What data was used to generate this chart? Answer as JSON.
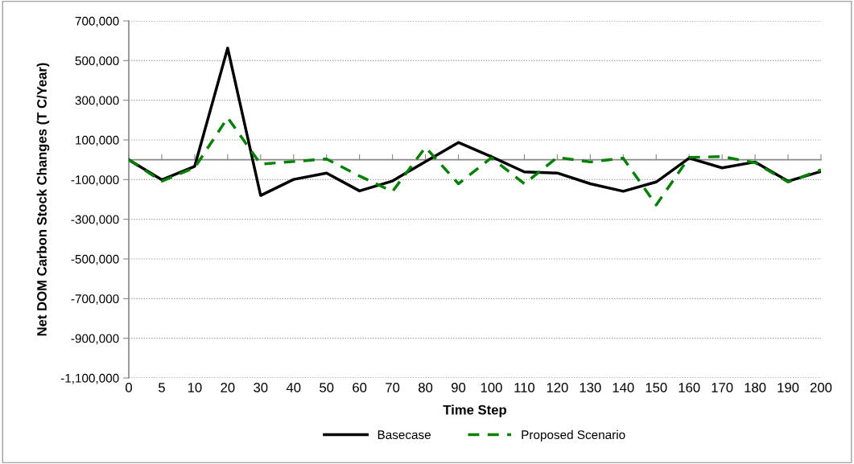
{
  "chart_data": {
    "type": "line",
    "xlabel": "Time Step",
    "ylabel": "Net DOM Carbon Stock Changes (T C/Year)",
    "categories": [
      "0",
      "5",
      "10",
      "20",
      "30",
      "40",
      "50",
      "60",
      "70",
      "80",
      "90",
      "100",
      "110",
      "120",
      "130",
      "140",
      "150",
      "160",
      "170",
      "180",
      "190",
      "200"
    ],
    "series": [
      {
        "name": "Basecase",
        "color": "#000000",
        "line_style": "solid",
        "values": [
          0,
          -101000,
          -33000,
          563000,
          -180000,
          -99000,
          -67000,
          -157000,
          -107000,
          -9000,
          87000,
          15000,
          -61000,
          -67000,
          -121000,
          -159000,
          -112000,
          8000,
          -41000,
          -11000,
          -108000,
          -59000
        ]
      },
      {
        "name": "Proposed Scenario",
        "color": "#008000",
        "line_style": "dashed",
        "values": [
          0,
          -108000,
          -40000,
          212000,
          -22000,
          -9000,
          4000,
          -82000,
          -160000,
          63000,
          -121000,
          10000,
          -121000,
          12000,
          -11000,
          8000,
          -228000,
          12000,
          16000,
          -15000,
          -112000,
          -51000
        ]
      }
    ],
    "ylim": [
      -1100000,
      700000
    ],
    "yticks": [
      {
        "value": -1100000,
        "label": "-1,100,000"
      },
      {
        "value": -900000,
        "label": "-900,000"
      },
      {
        "value": -700000,
        "label": "-700,000"
      },
      {
        "value": -500000,
        "label": "-500,000"
      },
      {
        "value": -300000,
        "label": "-300,000"
      },
      {
        "value": -100000,
        "label": "-100,000"
      },
      {
        "value": 100000,
        "label": "100,000"
      },
      {
        "value": 300000,
        "label": "300,000"
      },
      {
        "value": 500000,
        "label": "500,000"
      },
      {
        "value": 700000,
        "label": "700,000"
      }
    ],
    "grid": "y",
    "legend": "bottom",
    "marker": "none"
  }
}
